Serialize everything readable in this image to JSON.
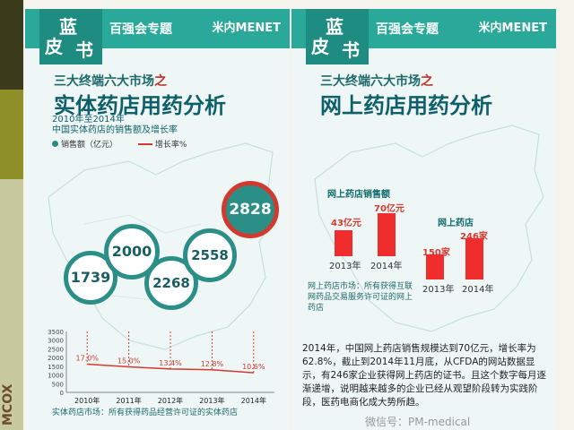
{
  "sidebar": {
    "logo_text": "MCOX"
  },
  "panel_left": {
    "header": {
      "badge_chars": [
        "蓝",
        "皮",
        "书"
      ],
      "title": "百强会专题",
      "brand": "米内MENET"
    },
    "kicker": {
      "prefix": "三大终端六大市场",
      "zhi": "之"
    },
    "headline": "实体药店用药分析",
    "subtitle_line1": "2010年至2014年",
    "subtitle_line2": "中国实体药店的销售额及增长率",
    "legend_sales": "销售额（亿元）",
    "legend_growth": "增长率%",
    "chart_data": {
      "type": "bar",
      "categories": [
        "2010年",
        "2011年",
        "2012年",
        "2013年",
        "2014年"
      ],
      "values": [
        1739,
        2000,
        2268,
        2558,
        2828
      ],
      "growth_percent": [
        17.0,
        15.0,
        13.4,
        12.8,
        10.6
      ],
      "growth_labels": [
        "17.0%",
        "15.0%",
        "13.4%",
        "12.8%",
        "10.6%"
      ],
      "y_ticks": [
        "3500",
        "3000",
        "2500",
        "2000",
        "1500",
        "1000",
        "500",
        "0"
      ],
      "ylim": [
        0,
        3500
      ]
    },
    "note": "实体药店市场：所有获得药品经营许可证的实体药店"
  },
  "panel_right": {
    "header": {
      "badge_chars": [
        "蓝",
        "皮",
        "书"
      ],
      "title": "百强会专题",
      "brand": "米内MENET"
    },
    "kicker": {
      "prefix": "三大终端六大市场",
      "zhi": "之"
    },
    "headline": "网上药店用药分析",
    "chart_sales": {
      "type": "bar",
      "title": "网上药店销售额",
      "categories": [
        "2013年",
        "2014年"
      ],
      "value_labels": [
        "43亿元",
        "70亿元"
      ],
      "values": [
        43,
        70
      ]
    },
    "chart_stores": {
      "type": "bar",
      "title": "网上药店",
      "categories": [
        "2013年",
        "2014年"
      ],
      "value_labels": [
        "150家",
        "246家"
      ],
      "values": [
        150,
        246
      ]
    },
    "note": "网上药店市场：所有获得互联网药品交易服务许可证的网上药店",
    "paragraph": "2014年，中国网上药店销售规模达到70亿元，增长率为62.8%，截止到2014年11月底，从CFDA的网站数据显示，有246家企业获得网上药店的证书。且这个数字每月逐渐递增，说明越来越多的企业已经从观望阶段转为实践阶段，医药电商化成大势所趋。",
    "watermark": "微信号：PM-medical"
  },
  "colors": {
    "teal": "#2aa99a",
    "red": "#ef2d2d",
    "dark_teal": "#0f5f6a"
  }
}
